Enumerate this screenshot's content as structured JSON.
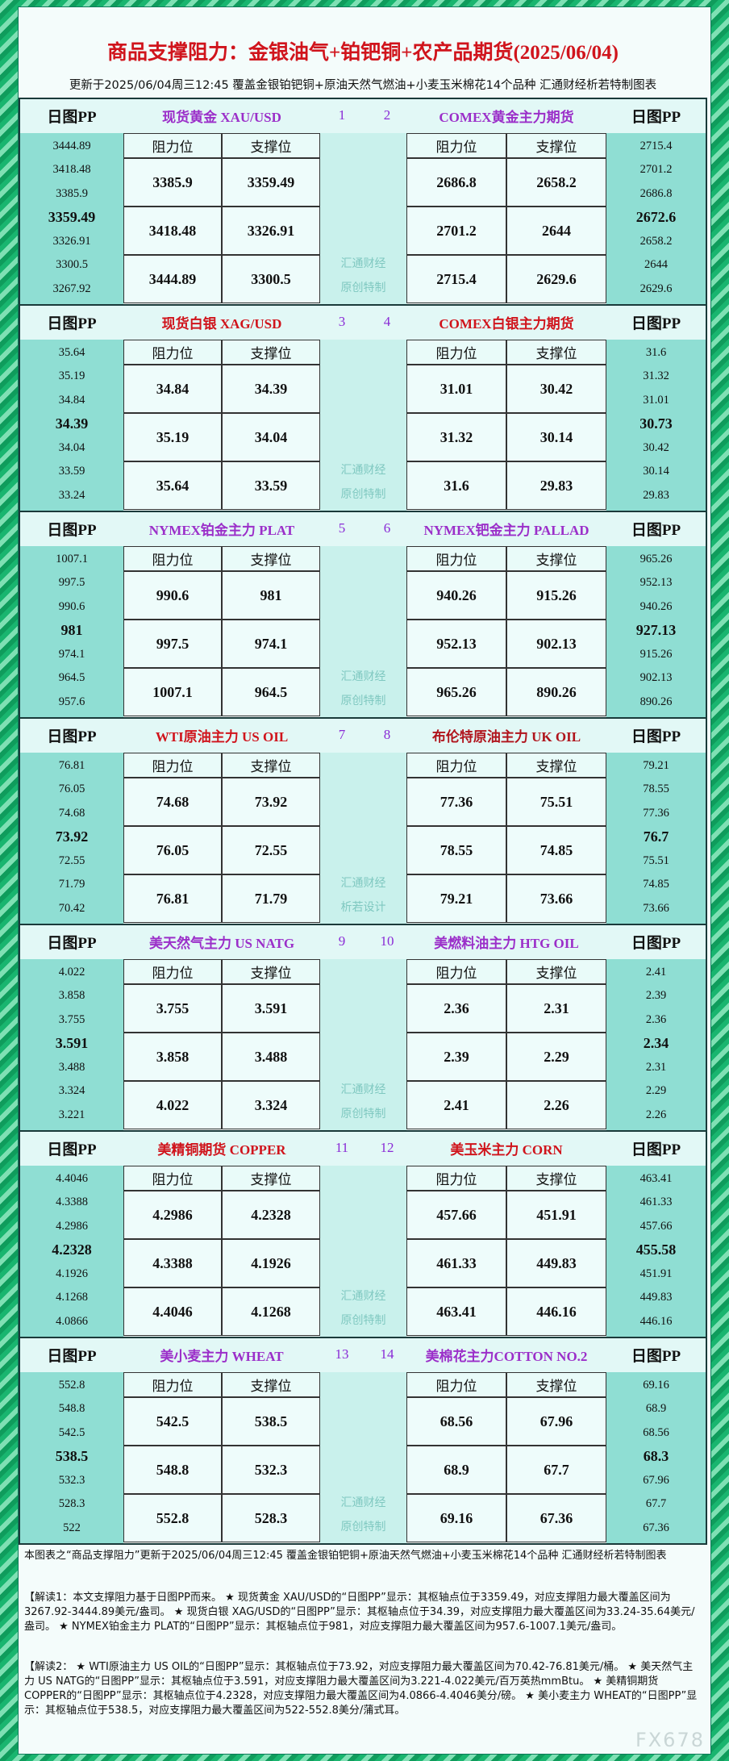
{
  "header": {
    "title": "商品支撑阻力：金银油气+铂钯铜+农产品期货(2025/06/04)",
    "subtitle": "更新于2025/06/04周三12:45 覆盖金银铂钯铜+原油天然气燃油+小麦玉米棉花14个品种 汇通财经析若特制图表"
  },
  "pp_label": "日图PP",
  "table_header": [
    "阻力位",
    "支撑位"
  ],
  "blocks": [
    {
      "watermark": [
        "汇通财经",
        "原创特制"
      ],
      "left": {
        "name": "现货黄金 XAU/USD",
        "color": "#9b2fc9",
        "number": "1",
        "pivots": [
          "3444.89",
          "3418.48",
          "3385.9",
          "3359.49",
          "3326.91",
          "3300.5",
          "3267.92"
        ],
        "rows": [
          [
            "3385.9",
            "3359.49"
          ],
          [
            "3418.48",
            "3326.91"
          ],
          [
            "3444.89",
            "3300.5"
          ]
        ]
      },
      "right": {
        "name": "COMEX黄金主力期货",
        "color": "#9b2fc9",
        "number": "2",
        "pivots": [
          "2715.4",
          "2701.2",
          "2686.8",
          "2672.6",
          "2658.2",
          "2644",
          "2629.6"
        ],
        "rows": [
          [
            "2686.8",
            "2658.2"
          ],
          [
            "2701.2",
            "2644"
          ],
          [
            "2715.4",
            "2629.6"
          ]
        ]
      }
    },
    {
      "watermark": [
        "汇通财经",
        "原创特制"
      ],
      "left": {
        "name": "现货白银 XAG/USD",
        "color": "#d0141c",
        "number": "3",
        "pivots": [
          "35.64",
          "35.19",
          "34.84",
          "34.39",
          "34.04",
          "33.59",
          "33.24"
        ],
        "rows": [
          [
            "34.84",
            "34.39"
          ],
          [
            "35.19",
            "34.04"
          ],
          [
            "35.64",
            "33.59"
          ]
        ]
      },
      "right": {
        "name": "COMEX白银主力期货",
        "color": "#d0141c",
        "number": "4",
        "pivots": [
          "31.6",
          "31.32",
          "31.01",
          "30.73",
          "30.42",
          "30.14",
          "29.83"
        ],
        "rows": [
          [
            "31.01",
            "30.42"
          ],
          [
            "31.32",
            "30.14"
          ],
          [
            "31.6",
            "29.83"
          ]
        ]
      }
    },
    {
      "watermark": [
        "汇通财经",
        "原创特制"
      ],
      "left": {
        "name": "NYMEX铂金主力 PLAT",
        "color": "#9b2fc9",
        "number": "5",
        "pivots": [
          "1007.1",
          "997.5",
          "990.6",
          "981",
          "974.1",
          "964.5",
          "957.6"
        ],
        "rows": [
          [
            "990.6",
            "981"
          ],
          [
            "997.5",
            "974.1"
          ],
          [
            "1007.1",
            "964.5"
          ]
        ]
      },
      "right": {
        "name": "NYMEX钯金主力 PALLAD",
        "color": "#9b2fc9",
        "number": "6",
        "pivots": [
          "965.26",
          "952.13",
          "940.26",
          "927.13",
          "915.26",
          "902.13",
          "890.26"
        ],
        "rows": [
          [
            "940.26",
            "915.26"
          ],
          [
            "952.13",
            "902.13"
          ],
          [
            "965.26",
            "890.26"
          ]
        ]
      }
    },
    {
      "watermark": [
        "汇通财经",
        "析若设计"
      ],
      "left": {
        "name": "WTI原油主力 US OIL",
        "color": "#d0141c",
        "number": "7",
        "pivots": [
          "76.81",
          "76.05",
          "74.68",
          "73.92",
          "72.55",
          "71.79",
          "70.42"
        ],
        "rows": [
          [
            "74.68",
            "73.92"
          ],
          [
            "76.05",
            "72.55"
          ],
          [
            "76.81",
            "71.79"
          ]
        ]
      },
      "right": {
        "name": "布伦特原油主力 UK OIL",
        "color": "#b0141c",
        "number": "8",
        "pivots": [
          "79.21",
          "78.55",
          "77.36",
          "76.7",
          "75.51",
          "74.85",
          "73.66"
        ],
        "rows": [
          [
            "77.36",
            "75.51"
          ],
          [
            "78.55",
            "74.85"
          ],
          [
            "79.21",
            "73.66"
          ]
        ]
      }
    },
    {
      "watermark": [
        "汇通财经",
        "原创特制"
      ],
      "left": {
        "name": "美天然气主力 US NATG",
        "color": "#9b2fc9",
        "number": "9",
        "pivots": [
          "4.022",
          "3.858",
          "3.755",
          "3.591",
          "3.488",
          "3.324",
          "3.221"
        ],
        "rows": [
          [
            "3.755",
            "3.591"
          ],
          [
            "3.858",
            "3.488"
          ],
          [
            "4.022",
            "3.324"
          ]
        ]
      },
      "right": {
        "name": "美燃料油主力 HTG OIL",
        "color": "#9b2fc9",
        "number": "10",
        "pivots": [
          "2.41",
          "2.39",
          "2.36",
          "2.34",
          "2.31",
          "2.29",
          "2.26"
        ],
        "rows": [
          [
            "2.36",
            "2.31"
          ],
          [
            "2.39",
            "2.29"
          ],
          [
            "2.41",
            "2.26"
          ]
        ]
      }
    },
    {
      "watermark": [
        "汇通财经",
        "原创特制"
      ],
      "left": {
        "name": "美精铜期货 COPPER",
        "color": "#d0141c",
        "number": "11",
        "pivots": [
          "4.4046",
          "4.3388",
          "4.2986",
          "4.2328",
          "4.1926",
          "4.1268",
          "4.0866"
        ],
        "rows": [
          [
            "4.2986",
            "4.2328"
          ],
          [
            "4.3388",
            "4.1926"
          ],
          [
            "4.4046",
            "4.1268"
          ]
        ]
      },
      "right": {
        "name": "美玉米主力 CORN",
        "color": "#d0141c",
        "number": "12",
        "pivots": [
          "463.41",
          "461.33",
          "457.66",
          "455.58",
          "451.91",
          "449.83",
          "446.16"
        ],
        "rows": [
          [
            "457.66",
            "451.91"
          ],
          [
            "461.33",
            "449.83"
          ],
          [
            "463.41",
            "446.16"
          ]
        ]
      }
    },
    {
      "watermark": [
        "汇通财经",
        "原创特制"
      ],
      "left": {
        "name": "美小麦主力 WHEAT",
        "color": "#9b2fc9",
        "number": "13",
        "pivots": [
          "552.8",
          "548.8",
          "542.5",
          "538.5",
          "532.3",
          "528.3",
          "522"
        ],
        "rows": [
          [
            "542.5",
            "538.5"
          ],
          [
            "548.8",
            "532.3"
          ],
          [
            "552.8",
            "528.3"
          ]
        ]
      },
      "right": {
        "name": "美棉花主力COTTON NO.2",
        "color": "#9b2fc9",
        "number": "14",
        "pivots": [
          "69.16",
          "68.9",
          "68.56",
          "68.3",
          "67.96",
          "67.7",
          "67.36"
        ],
        "rows": [
          [
            "68.56",
            "67.96"
          ],
          [
            "68.9",
            "67.7"
          ],
          [
            "69.16",
            "67.36"
          ]
        ]
      }
    }
  ],
  "footer": {
    "note": "本图表之“商品支撑阻力”更新于2025/06/04周三12:45 覆盖金银铂钯铜+原油天然气燃油+小麦玉米棉花14个品种 汇通财经析若特制图表",
    "analysis": [
      "【解读1：本文支撑阻力基于日图PP而来。 ★ 现货黄金 XAU/USD的“日图PP”显示：其枢轴点位于3359.49，对应支撑阻力最大覆盖区间为3267.92-3444.89美元/盎司。 ★ 现货白银 XAG/USD的“日图PP”显示：其枢轴点位于34.39，对应支撑阻力最大覆盖区间为33.24-35.64美元/盎司。 ★ NYMEX铂金主力 PLAT的“日图PP”显示：其枢轴点位于981，对应支撑阻力最大覆盖区间为957.6-1007.1美元/盎司。",
      "【解读2： ★ WTI原油主力 US OIL的“日图PP”显示：其枢轴点位于73.92，对应支撑阻力最大覆盖区间为70.42-76.81美元/桶。 ★ 美天然气主力 US NATG的“日图PP”显示：其枢轴点位于3.591，对应支撑阻力最大覆盖区间为3.221-4.022美元/百万英热mmBtu。 ★ 美精铜期货 COPPER的“日图PP”显示：其枢轴点位于4.2328，对应支撑阻力最大覆盖区间为4.0866-4.4046美分/磅。 ★ 美小麦主力 WHEAT的“日图PP”显示：其枢轴点位于538.5，对应支撑阻力最大覆盖区间为522-552.8美分/蒲式耳。"
    ],
    "logo": "FX678"
  }
}
